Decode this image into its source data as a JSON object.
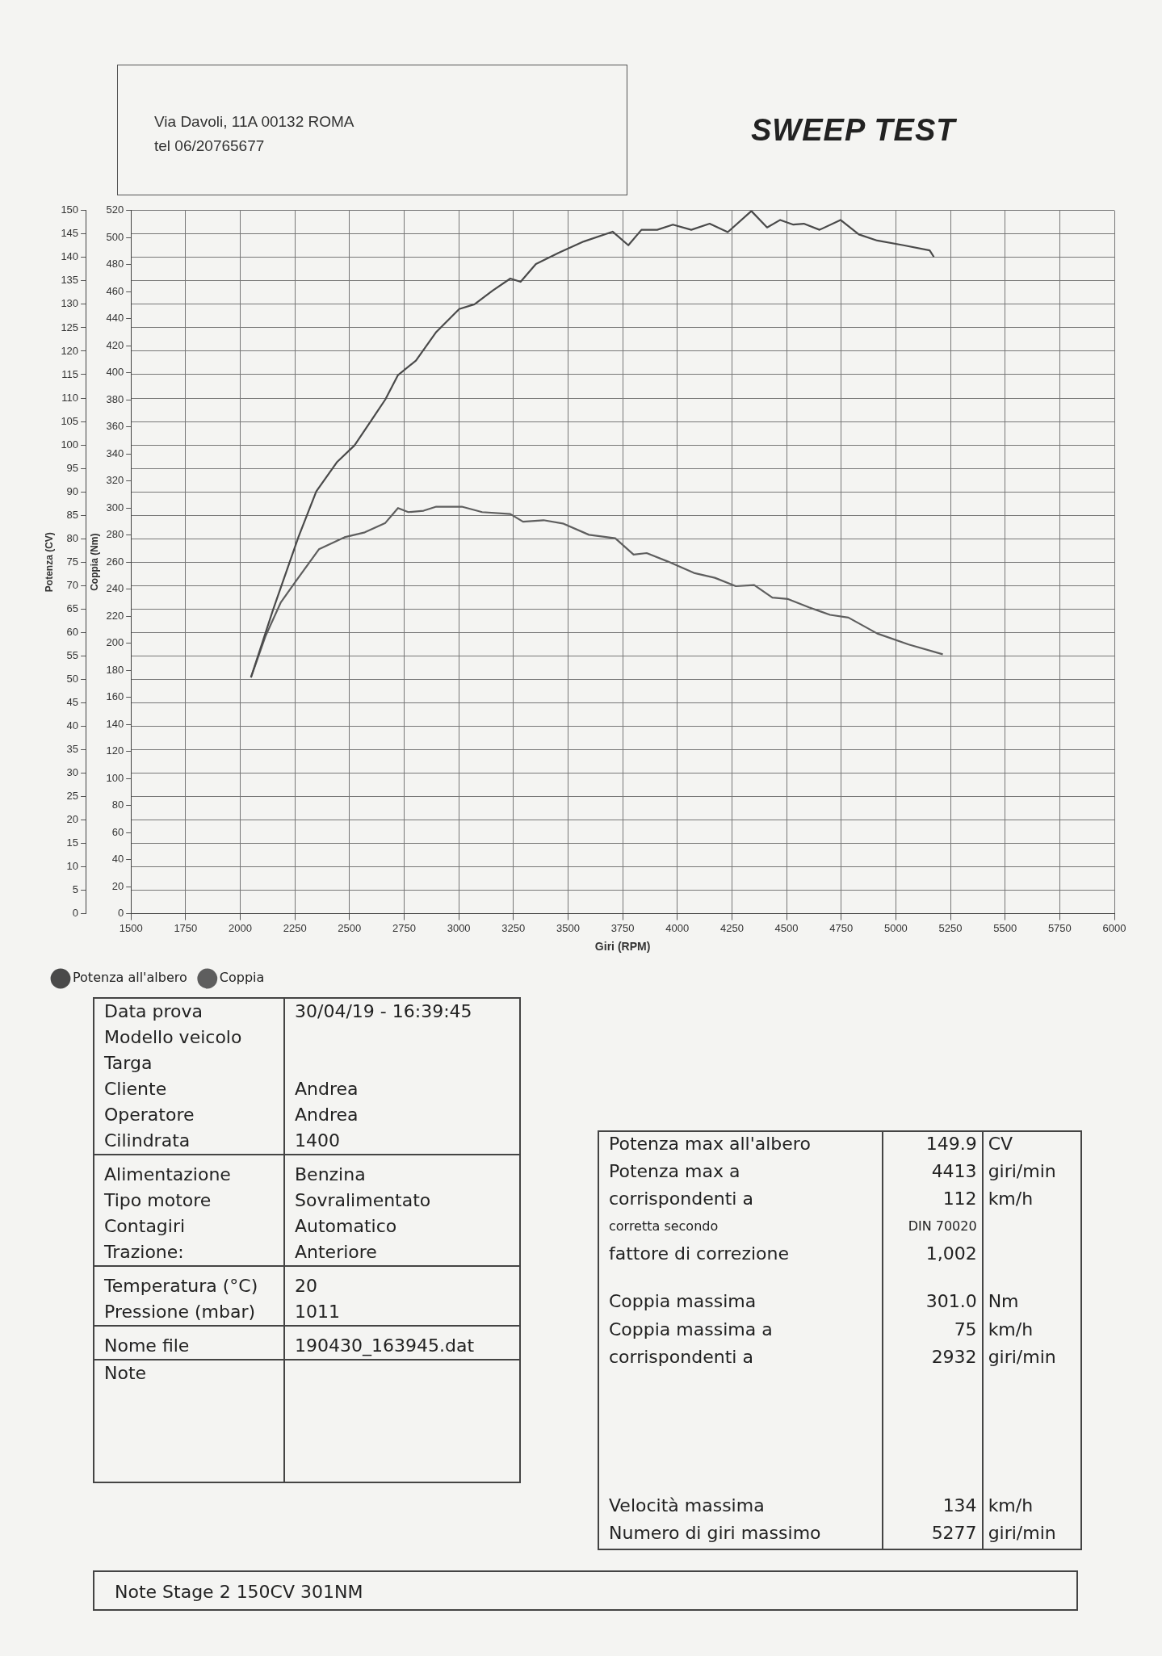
{
  "chart_data": {
    "type": "line",
    "title": "SWEEP TEST",
    "xlabel": "Giri (RPM)",
    "ylabel": "Potenza (CV)",
    "y2label": "Coppia (Nm)",
    "series": [
      {
        "name": "Potenza all'albero",
        "color": "#4a4a4a",
        "axis": "y",
        "x": [
          2049,
          2150,
          2266,
          2348,
          2442,
          2523,
          2605,
          2664,
          2722,
          2804,
          2897,
          3002,
          3072,
          3154,
          3236,
          3283,
          3353,
          3458,
          3572,
          3704,
          3776,
          3836,
          3908,
          3980,
          4064,
          4148,
          4231,
          4339,
          4411,
          4471,
          4531,
          4579,
          4651,
          4747,
          4831,
          4915,
          5035,
          5155,
          5174
        ],
        "values": [
          50.4,
          64.8,
          80.3,
          90.1,
          96.3,
          99.9,
          105.6,
          109.7,
          114.9,
          118,
          124.1,
          129,
          130,
          132.9,
          135.5,
          134.8,
          138.6,
          141,
          143.4,
          145.5,
          142.6,
          145.9,
          145.9,
          147,
          145.9,
          147.2,
          145.4,
          149.9,
          146.4,
          148,
          147,
          147.2,
          145.9,
          148,
          144.9,
          143.6,
          142.6,
          141.5,
          140.1
        ]
      },
      {
        "name": "Coppia",
        "color": "#5e5e5e",
        "axis": "y2",
        "x": [
          2049,
          2115,
          2185,
          2255,
          2360,
          2477,
          2570,
          2664,
          2722,
          2769,
          2839,
          2897,
          3014,
          3107,
          3236,
          3294,
          3388,
          3476,
          3596,
          3716,
          3800,
          3860,
          3956,
          4076,
          4172,
          4268,
          4352,
          4435,
          4507,
          4603,
          4699,
          4783,
          4915,
          5059,
          5215
        ],
        "values": [
          174.7,
          205,
          230,
          246,
          269.5,
          278.4,
          282,
          289,
          300,
          297,
          298,
          301,
          301,
          297,
          295.6,
          289.9,
          291,
          288.6,
          280.2,
          277.7,
          265.6,
          266.7,
          260.5,
          252,
          248.4,
          242.2,
          243,
          233.8,
          232.7,
          226.5,
          221,
          219,
          207.2,
          199.1,
          191.8
        ]
      }
    ],
    "xlim": [
      1500,
      6000
    ],
    "xticks": [
      1500,
      1750,
      2000,
      2250,
      2500,
      2750,
      3000,
      3250,
      3500,
      3750,
      4000,
      4250,
      4500,
      4750,
      5000,
      5250,
      5500,
      5750,
      6000
    ],
    "ylim": [
      0,
      150
    ],
    "yticks": [
      0,
      5,
      10,
      15,
      20,
      25,
      30,
      35,
      40,
      45,
      50,
      55,
      60,
      65,
      70,
      75,
      80,
      85,
      90,
      95,
      100,
      105,
      110,
      115,
      120,
      125,
      130,
      135,
      140,
      145,
      150
    ],
    "y2lim": [
      0,
      520
    ],
    "y2ticks": [
      0,
      20,
      40,
      60,
      80,
      100,
      120,
      140,
      160,
      180,
      200,
      220,
      240,
      260,
      280,
      300,
      320,
      340,
      360,
      380,
      400,
      420,
      440,
      460,
      480,
      500,
      520
    ],
    "grid": true,
    "legend": "bottom",
    "marker": "none",
    "line_style": "solid",
    "annotations": [
      "Via Davoli, 11A 00132 ROMA",
      "tel 06/20765677",
      "Data prova",
      "30/04/19 - 16:39:45",
      "Modello veicolo",
      "Targa",
      "Cliente",
      "Andrea",
      "Operatore",
      "Andrea",
      "Cilindrata",
      "1400",
      "Alimentazione",
      "Benzina",
      "Tipo motore",
      "Sovralimentato",
      "Contagiri",
      "Automatico",
      "Trazione:",
      "Anteriore",
      "Temperatura (°C)",
      "20",
      "Pressione (mbar)",
      "1011",
      "Nome file",
      "190430_163945.dat",
      "Note",
      "Note  Stage 2 150CV 301NM",
      "Potenza max all'albero",
      "149.9",
      "CV",
      "Potenza max a",
      "4413",
      "giri/min",
      "corrispondenti a",
      "112",
      "km/h",
      "corretta secondo",
      "DIN 70020",
      "fattore di correzione",
      "1,002",
      "Coppia massima",
      "301.0",
      "Nm",
      "Coppia massima a",
      "75",
      "km/h",
      "corrispondenti a",
      "2932",
      "giri/min",
      "Velocità massima",
      "134",
      "km/h",
      "Numero di giri massimo",
      "5277",
      "giri/min"
    ]
  }
}
